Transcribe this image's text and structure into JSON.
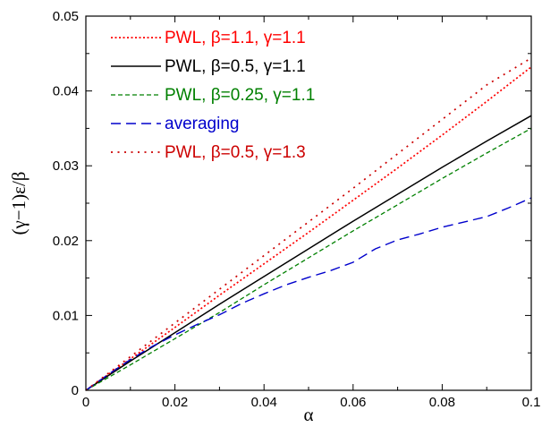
{
  "chart_data": {
    "type": "line",
    "xlabel": "α",
    "ylabel": "(γ−1)ε/β",
    "xlim": [
      0,
      0.1
    ],
    "ylim": [
      0,
      0.05
    ],
    "xticks": [
      "0",
      "0.02",
      "0.04",
      "0.06",
      "0.08",
      "0.1"
    ],
    "yticks": [
      "0",
      "0.01",
      "0.02",
      "0.03",
      "0.04",
      "0.05"
    ],
    "grid": false,
    "legend_position": "top-left",
    "series": [
      {
        "name": "PWL, β=1.1, γ=1.1",
        "color": "#ff0000",
        "dash": "dotted",
        "x": [
          0,
          0.01,
          0.02,
          0.03,
          0.04,
          0.05,
          0.06,
          0.07,
          0.08,
          0.09,
          0.1
        ],
        "y": [
          0,
          0.0042,
          0.0084,
          0.0127,
          0.0169,
          0.0211,
          0.0254,
          0.0297,
          0.0341,
          0.0386,
          0.0432
        ]
      },
      {
        "name": "PWL, β=0.5, γ=1.1",
        "color": "#000000",
        "dash": "solid",
        "x": [
          0,
          0.01,
          0.02,
          0.03,
          0.04,
          0.05,
          0.06,
          0.07,
          0.08,
          0.09,
          0.1
        ],
        "y": [
          0,
          0.0039,
          0.0077,
          0.0115,
          0.0152,
          0.0189,
          0.0226,
          0.0262,
          0.0298,
          0.0333,
          0.0367
        ]
      },
      {
        "name": "PWL, β=0.25, γ=1.1",
        "color": "#008000",
        "dash": "dashed",
        "x": [
          0,
          0.01,
          0.02,
          0.03,
          0.04,
          0.05,
          0.06,
          0.07,
          0.08,
          0.09,
          0.1
        ],
        "y": [
          0,
          0.0034,
          0.0069,
          0.0104,
          0.0141,
          0.0177,
          0.0213,
          0.0248,
          0.0283,
          0.0317,
          0.035
        ]
      },
      {
        "name": "averaging",
        "color": "#0000cc",
        "dash": "long-dashed",
        "x": [
          0,
          0.005,
          0.01,
          0.015,
          0.02,
          0.025,
          0.03,
          0.035,
          0.04,
          0.045,
          0.05,
          0.055,
          0.06,
          0.065,
          0.07,
          0.075,
          0.08,
          0.085,
          0.09,
          0.095,
          0.1
        ],
        "y": [
          0,
          0.0021,
          0.0041,
          0.0059,
          0.0074,
          0.0088,
          0.0101,
          0.0116,
          0.0129,
          0.0141,
          0.0151,
          0.016,
          0.0171,
          0.0189,
          0.0201,
          0.0209,
          0.0218,
          0.0225,
          0.0232,
          0.0244,
          0.0257
        ]
      },
      {
        "name": "PWL, β=0.5, γ=1.3",
        "color": "#cc0000",
        "dash": "sparse-dotted",
        "x": [
          0,
          0.01,
          0.02,
          0.03,
          0.04,
          0.05,
          0.06,
          0.07,
          0.08,
          0.09,
          0.1
        ],
        "y": [
          0,
          0.0045,
          0.009,
          0.0135,
          0.018,
          0.0225,
          0.027,
          0.0316,
          0.0362,
          0.0408,
          0.0444
        ]
      }
    ]
  }
}
